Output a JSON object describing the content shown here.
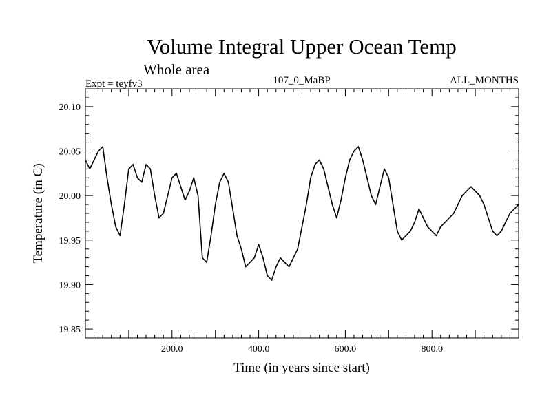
{
  "chart_data": {
    "type": "line",
    "title": "Volume Integral Upper Ocean Temp",
    "subtitle": "Whole area",
    "header_left": "Expt = teyfv3",
    "header_center": "107_0_MaBP",
    "header_right": "ALL_MONTHS",
    "xlabel": "Time (in years since start)",
    "ylabel": "Temperature (in C)",
    "xlim": [
      0,
      1000
    ],
    "ylim": [
      19.84,
      20.12
    ],
    "x_ticks": [
      200,
      400,
      600,
      800
    ],
    "x_tick_labels": [
      "200.0",
      "400.0",
      "600.0",
      "800.0"
    ],
    "y_ticks": [
      19.85,
      19.9,
      19.95,
      20.0,
      20.05,
      20.1
    ],
    "y_tick_labels": [
      "19.85",
      "19.90",
      "19.95",
      "20.00",
      "20.05",
      "20.10"
    ],
    "grid": false,
    "series": [
      {
        "name": "Volume Integral Upper Ocean Temp",
        "color": "#000000",
        "x": [
          0,
          10,
          20,
          30,
          40,
          50,
          60,
          70,
          80,
          90,
          100,
          110,
          120,
          130,
          140,
          150,
          160,
          170,
          180,
          190,
          200,
          210,
          220,
          230,
          240,
          250,
          260,
          270,
          280,
          290,
          300,
          310,
          320,
          330,
          340,
          350,
          360,
          370,
          380,
          390,
          400,
          410,
          420,
          430,
          440,
          450,
          460,
          470,
          480,
          490,
          500,
          510,
          520,
          530,
          540,
          550,
          560,
          570,
          580,
          590,
          600,
          610,
          620,
          630,
          640,
          650,
          660,
          670,
          680,
          690,
          700,
          710,
          720,
          730,
          740,
          750,
          760,
          770,
          780,
          790,
          800,
          810,
          820,
          830,
          840,
          850,
          860,
          870,
          880,
          890,
          900,
          910,
          920,
          930,
          940,
          950,
          960,
          970,
          980,
          990,
          1000
        ],
        "values": [
          20.04,
          20.03,
          20.04,
          20.05,
          20.055,
          20.02,
          19.99,
          19.965,
          19.955,
          19.99,
          20.03,
          20.035,
          20.02,
          20.015,
          20.035,
          20.03,
          20.0,
          19.975,
          19.98,
          20.0,
          20.02,
          20.025,
          20.01,
          19.995,
          20.005,
          20.02,
          20.0,
          19.93,
          19.925,
          19.955,
          19.99,
          20.015,
          20.025,
          20.015,
          19.985,
          19.955,
          19.94,
          19.92,
          19.925,
          19.93,
          19.945,
          19.93,
          19.91,
          19.905,
          19.92,
          19.93,
          19.925,
          19.92,
          19.93,
          19.94,
          19.965,
          19.99,
          20.02,
          20.035,
          20.04,
          20.03,
          20.01,
          19.99,
          19.975,
          19.995,
          20.02,
          20.04,
          20.05,
          20.055,
          20.04,
          20.02,
          20.0,
          19.99,
          20.01,
          20.03,
          20.02,
          19.99,
          19.96,
          19.95,
          19.955,
          19.96,
          19.97,
          19.985,
          19.975,
          19.965,
          19.96,
          19.955,
          19.965,
          19.97,
          19.975,
          19.98,
          19.99,
          20.0,
          20.005,
          20.01,
          20.005,
          20.0,
          19.99,
          19.975,
          19.96,
          19.955,
          19.96,
          19.97,
          19.98,
          19.985,
          19.99
        ]
      }
    ]
  }
}
